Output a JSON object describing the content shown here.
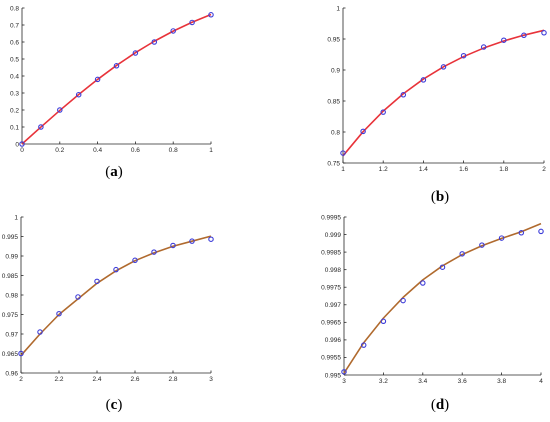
{
  "chart_data": [
    {
      "type": "line",
      "caption": "(a)",
      "xlim": [
        0,
        1
      ],
      "ylim": [
        0,
        0.8
      ],
      "x_ticks": [
        "0",
        "0.2",
        "0.4",
        "0.6",
        "0.8",
        "1"
      ],
      "y_ticks": [
        "0",
        "0.1",
        "0.2",
        "0.3",
        "0.4",
        "0.5",
        "0.6",
        "0.7",
        "0.8"
      ],
      "x": [
        0,
        0.1,
        0.2,
        0.3,
        0.4,
        0.5,
        0.6,
        0.7,
        0.8,
        0.9,
        1.0
      ],
      "series": [
        {
          "kind": "curve",
          "color": "#e8333a",
          "values": [
            0,
            0.0997,
            0.1974,
            0.2913,
            0.3799,
            0.4621,
            0.537,
            0.6044,
            0.664,
            0.7163,
            0.7616
          ]
        },
        {
          "kind": "markers",
          "color": "#3c3cd9",
          "values": [
            0,
            0.1,
            0.2,
            0.29,
            0.38,
            0.46,
            0.535,
            0.6,
            0.665,
            0.715,
            0.76
          ]
        }
      ],
      "grid": false
    },
    {
      "type": "line",
      "caption": "(b)",
      "xlim": [
        1,
        2
      ],
      "ylim": [
        0.75,
        1
      ],
      "x_ticks": [
        "1",
        "1.2",
        "1.4",
        "1.6",
        "1.8",
        "2"
      ],
      "y_ticks": [
        "0.75",
        "0.8",
        "0.85",
        "0.9",
        "0.95",
        "1"
      ],
      "x": [
        1.0,
        1.1,
        1.2,
        1.3,
        1.4,
        1.5,
        1.6,
        1.7,
        1.8,
        1.9,
        2.0
      ],
      "series": [
        {
          "kind": "curve",
          "color": "#e8333a",
          "values": [
            0.7616,
            0.8005,
            0.8337,
            0.8617,
            0.8854,
            0.9051,
            0.9217,
            0.9354,
            0.9468,
            0.9562,
            0.964
          ]
        },
        {
          "kind": "markers",
          "color": "#3c3cd9",
          "values": [
            0.766,
            0.801,
            0.832,
            0.86,
            0.884,
            0.905,
            0.923,
            0.937,
            0.948,
            0.956,
            0.96
          ]
        }
      ],
      "grid": false
    },
    {
      "type": "line",
      "caption": "(c)",
      "xlim": [
        2,
        3
      ],
      "ylim": [
        0.96,
        1
      ],
      "x_ticks": [
        "2",
        "2.2",
        "2.4",
        "2.6",
        "2.8",
        "3"
      ],
      "y_ticks": [
        "0.96",
        "0.965",
        "0.97",
        "0.975",
        "0.98",
        "0.985",
        "0.99",
        "0.995",
        "1"
      ],
      "x": [
        2.0,
        2.1,
        2.2,
        2.3,
        2.4,
        2.5,
        2.6,
        2.7,
        2.8,
        2.9,
        3.0
      ],
      "series": [
        {
          "kind": "curve",
          "color": "#b06a2e",
          "values": [
            0.9645,
            0.97,
            0.975,
            0.979,
            0.983,
            0.9862,
            0.9888,
            0.9908,
            0.9925,
            0.9938,
            0.9951
          ]
        },
        {
          "kind": "markers",
          "color": "#3c3cd9",
          "values": [
            0.965,
            0.9705,
            0.9752,
            0.9795,
            0.9835,
            0.9865,
            0.9889,
            0.991,
            0.9927,
            0.9938,
            0.9943
          ]
        }
      ],
      "grid": false
    },
    {
      "type": "line",
      "caption": "(d)",
      "xlim": [
        3,
        4
      ],
      "ylim": [
        0.995,
        0.9995
      ],
      "x_ticks": [
        "3",
        "3.2",
        "3.4",
        "3.6",
        "3.8",
        "4"
      ],
      "y_ticks": [
        "0.995",
        "0.9955",
        "0.996",
        "0.9965",
        "0.997",
        "0.9975",
        "0.998",
        "0.9985",
        "0.999",
        "0.9995"
      ],
      "x": [
        3.0,
        3.1,
        3.2,
        3.3,
        3.4,
        3.5,
        3.6,
        3.7,
        3.8,
        3.9,
        4.0
      ],
      "series": [
        {
          "kind": "curve",
          "color": "#b06a2e",
          "values": [
            0.99505,
            0.99592,
            0.99662,
            0.99721,
            0.99771,
            0.99811,
            0.99843,
            0.99868,
            0.99889,
            0.99908,
            0.99931
          ]
        },
        {
          "kind": "markers",
          "color": "#3c3cd9",
          "values": [
            0.99509,
            0.99585,
            0.99653,
            0.99712,
            0.99762,
            0.99807,
            0.99845,
            0.9987,
            0.9989,
            0.99905,
            0.99909
          ]
        }
      ],
      "grid": false
    }
  ]
}
